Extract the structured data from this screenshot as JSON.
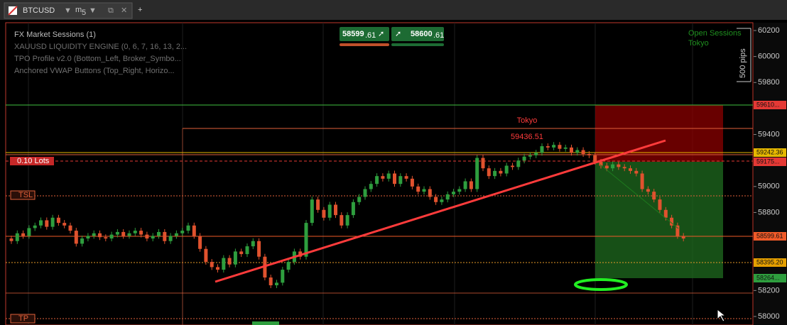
{
  "tab": {
    "symbol": "BTCUSD",
    "timeframe": "m",
    "timeframe_sub": "5"
  },
  "indicators": [
    "FX Market Sessions (1)",
    "XAUUSD LIQUIDITY ENGINE (0, 6, 7, 16, 13, 2...",
    "TPO Profile v2.0 (Bottom_Left, Broker_Symbo...",
    "Anchored VWAP Buttons (Top_Right, Horizo..."
  ],
  "trade_buttons": {
    "sell": {
      "big": "58599",
      "small": ".61"
    },
    "buy": {
      "big": "58600",
      "small": ".61"
    }
  },
  "sessions": {
    "title": "Open Sessions",
    "name": "Tokyo"
  },
  "pips_label": "500 pips",
  "price_axis": {
    "ticks": [
      60200,
      60000,
      59800,
      59400,
      59000,
      58800,
      58200,
      58000
    ]
  },
  "price_tags": [
    "59610...",
    "59242.36",
    "59175...",
    "58599.61",
    "58395.20",
    "58264..."
  ],
  "chart_labels": {
    "session": "Tokyo",
    "session_high": "59436.51",
    "lots": "0.10 Lots",
    "tsl": "TSL",
    "tp": "TP"
  },
  "candles": {
    "open": 58600,
    "closes": [
      58580,
      58640,
      58620,
      58680,
      58700,
      58740,
      58690,
      58760,
      58720,
      58700,
      58660,
      58560,
      58600,
      58620,
      58640,
      58610,
      58600,
      58630,
      58650,
      58620,
      58640,
      58660,
      58630,
      58600,
      58620,
      58650,
      58580,
      58620,
      58640,
      58660,
      58700,
      58620,
      58520,
      58420,
      58380,
      58360,
      58450,
      58400,
      58500,
      58480,
      58540,
      58580,
      58460,
      58300,
      58240,
      58260,
      58360,
      58420,
      58500,
      58460,
      58720,
      58900,
      58820,
      58760,
      58860,
      58780,
      58700,
      58780,
      58880,
      58920,
      58980,
      59020,
      59080,
      59060,
      59100,
      59020,
      59080,
      59060,
      59000,
      58960,
      58980,
      58920,
      58880,
      58900,
      58940,
      58960,
      58980,
      59040,
      58980,
      59220,
      59140,
      59080,
      59120,
      59100,
      59160,
      59150,
      59200,
      59230,
      59240,
      59260,
      59310,
      59300,
      59320,
      59290,
      59300,
      59260,
      59280,
      59250,
      59240,
      59190,
      59160,
      59140,
      59170,
      59150,
      59140,
      59120,
      59100,
      58980,
      58960,
      58900,
      58820,
      58760,
      58700,
      58620,
      58600
    ]
  }
}
